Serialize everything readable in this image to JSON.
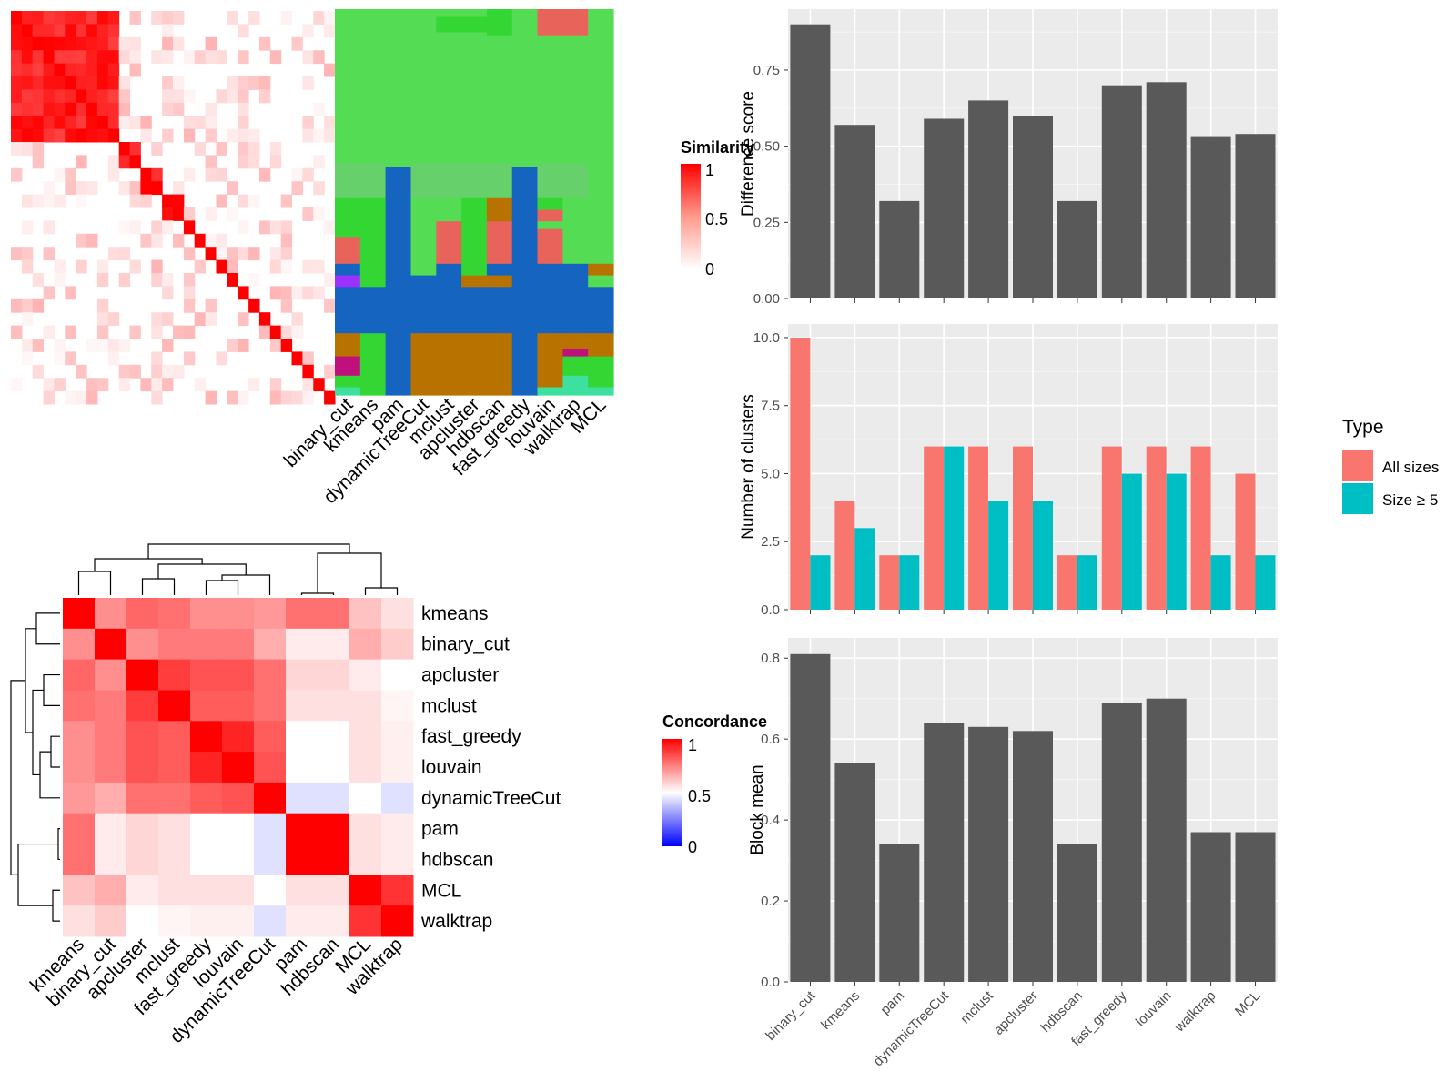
{
  "colors": {
    "panel_bg": "#ebebeb",
    "grid": "#ffffff",
    "bar_dark": "#595959",
    "all_sizes": "#f8766d",
    "size_ge5": "#00bfc4",
    "sim_high": "#ff0000",
    "sim_low": "#ffffff",
    "conc_low": "#0000ff",
    "cl_green": "#55dc55",
    "cl_green2": "#33d633",
    "cl_blue": "#1565c0",
    "cl_red": "#e8645a",
    "cl_brown": "#b87200",
    "cl_purple": "#9b30ff",
    "cl_magenta": "#c0107d",
    "cl_teal": "#3ee0a0"
  },
  "methods": [
    "binary_cut",
    "kmeans",
    "pam",
    "dynamicTreeCut",
    "mclust",
    "apcluster",
    "hdbscan",
    "fast_greedy",
    "louvain",
    "walktrap",
    "MCL"
  ],
  "similarity_heatmap": {
    "legend_title": "Similarity",
    "legend_ticks": [
      "1",
      "0.5",
      "0"
    ]
  },
  "concordance_heatmap": {
    "legend_title": "Concordance",
    "legend_ticks": [
      "1",
      "0.5",
      "0"
    ],
    "order": [
      "kmeans",
      "binary_cut",
      "apcluster",
      "mclust",
      "fast_greedy",
      "louvain",
      "dynamicTreeCut",
      "pam",
      "hdbscan",
      "MCL",
      "walktrap"
    ],
    "matrix": [
      [
        1.0,
        0.72,
        0.8,
        0.78,
        0.72,
        0.72,
        0.7,
        0.78,
        0.78,
        0.62,
        0.56
      ],
      [
        0.72,
        1.0,
        0.72,
        0.76,
        0.76,
        0.76,
        0.66,
        0.54,
        0.54,
        0.66,
        0.6
      ],
      [
        0.8,
        0.72,
        1.0,
        0.88,
        0.84,
        0.84,
        0.78,
        0.58,
        0.58,
        0.54,
        0.5
      ],
      [
        0.78,
        0.76,
        0.88,
        1.0,
        0.82,
        0.82,
        0.78,
        0.56,
        0.56,
        0.56,
        0.52
      ],
      [
        0.72,
        0.76,
        0.84,
        0.82,
        1.0,
        0.93,
        0.82,
        0.5,
        0.5,
        0.56,
        0.53
      ],
      [
        0.72,
        0.76,
        0.84,
        0.82,
        0.93,
        1.0,
        0.84,
        0.5,
        0.5,
        0.56,
        0.53
      ],
      [
        0.7,
        0.66,
        0.78,
        0.78,
        0.82,
        0.84,
        1.0,
        0.44,
        0.44,
        0.5,
        0.44
      ],
      [
        0.78,
        0.54,
        0.58,
        0.56,
        0.5,
        0.5,
        0.44,
        1.0,
        1.0,
        0.56,
        0.54
      ],
      [
        0.78,
        0.54,
        0.58,
        0.56,
        0.5,
        0.5,
        0.44,
        1.0,
        1.0,
        0.56,
        0.54
      ],
      [
        0.62,
        0.66,
        0.54,
        0.56,
        0.56,
        0.56,
        0.5,
        0.56,
        0.56,
        1.0,
        0.9
      ],
      [
        0.56,
        0.6,
        0.5,
        0.52,
        0.53,
        0.53,
        0.44,
        0.54,
        0.54,
        0.9,
        1.0
      ]
    ]
  },
  "chart_data": [
    {
      "type": "bar",
      "categories": [
        "binary_cut",
        "kmeans",
        "pam",
        "dynamicTreeCut",
        "mclust",
        "apcluster",
        "hdbscan",
        "fast_greedy",
        "louvain",
        "walktrap",
        "MCL"
      ],
      "values": [
        0.9,
        0.57,
        0.32,
        0.59,
        0.65,
        0.6,
        0.32,
        0.7,
        0.71,
        0.53,
        0.54
      ],
      "ylabel": "Difference score",
      "ylim": [
        0,
        0.95
      ],
      "yticks": [
        "0.00",
        "0.25",
        "0.50",
        "0.75"
      ],
      "grid": true
    },
    {
      "type": "bar",
      "categories": [
        "binary_cut",
        "kmeans",
        "pam",
        "dynamicTreeCut",
        "mclust",
        "apcluster",
        "hdbscan",
        "fast_greedy",
        "louvain",
        "walktrap",
        "MCL"
      ],
      "series": [
        {
          "name": "All sizes",
          "values": [
            10,
            4,
            2,
            6,
            6,
            6,
            2,
            6,
            6,
            6,
            5
          ]
        },
        {
          "name": "Size ≥ 5",
          "values": [
            2,
            3,
            2,
            6,
            4,
            4,
            2,
            5,
            5,
            2,
            2
          ]
        }
      ],
      "ylabel": "Number of clusters",
      "ylim": [
        0,
        10.5
      ],
      "yticks": [
        "0.0",
        "2.5",
        "5.0",
        "7.5",
        "10.0"
      ],
      "legend_title": "Type",
      "legend_position": "right",
      "grid": true
    },
    {
      "type": "bar",
      "categories": [
        "binary_cut",
        "kmeans",
        "pam",
        "dynamicTreeCut",
        "mclust",
        "apcluster",
        "hdbscan",
        "fast_greedy",
        "louvain",
        "walktrap",
        "MCL"
      ],
      "values": [
        0.81,
        0.54,
        0.34,
        0.64,
        0.63,
        0.62,
        0.34,
        0.69,
        0.7,
        0.37,
        0.37
      ],
      "ylabel": "Block mean",
      "ylim": [
        0,
        0.85
      ],
      "yticks": [
        "0.0",
        "0.2",
        "0.4",
        "0.6",
        "0.8"
      ],
      "grid": true
    }
  ]
}
